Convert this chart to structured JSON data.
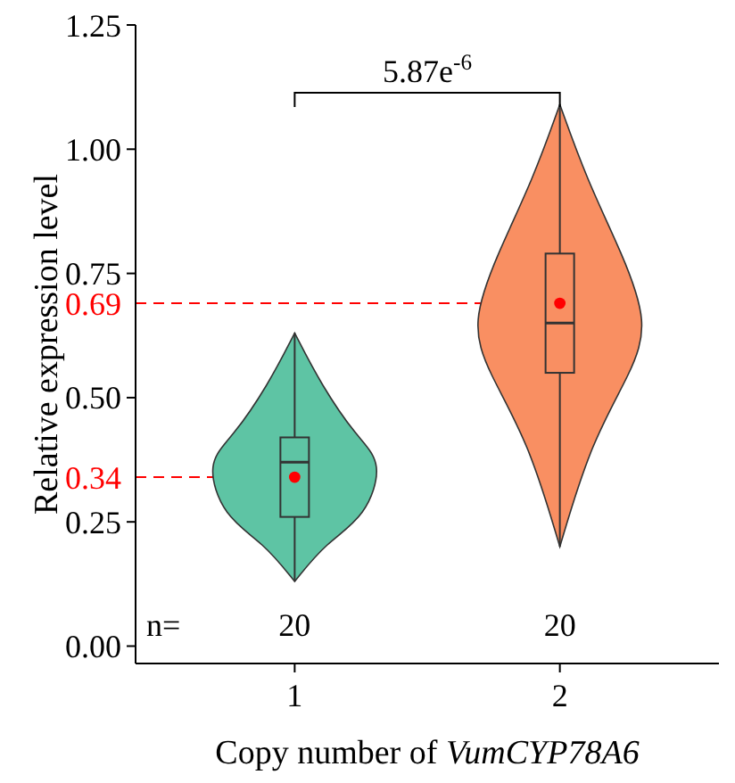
{
  "chart_data": {
    "type": "box",
    "xlabel": "Copy number of VumCYP78A6",
    "ylabel": "Relative expression level",
    "categories": [
      "1",
      "2"
    ],
    "series": [
      {
        "color": "#5ec4a4",
        "boxes": [
          {
            "low": 0.13,
            "q1": 0.26,
            "median": 0.37,
            "q3": 0.42,
            "high": 0.63,
            "mean": 0.34
          },
          null
        ]
      },
      {
        "color": "#f98f62",
        "boxes": [
          null,
          {
            "low": 0.2,
            "q1": 0.55,
            "median": 0.65,
            "q3": 0.79,
            "high": 1.09,
            "mean": 0.69
          }
        ]
      }
    ],
    "ylim": [
      -0.035,
      1.25
    ],
    "yticks": [
      {
        "value": 0,
        "label": "0.00"
      },
      {
        "value": 0.25,
        "label": "0.25"
      },
      {
        "value": 0.5,
        "label": "0.50"
      },
      {
        "value": 0.75,
        "label": "0.75"
      },
      {
        "value": 1,
        "label": "1.00"
      },
      {
        "value": 1.25,
        "label": "1.25"
      }
    ],
    "ref_lines": [
      {
        "axis": "y",
        "value": 0.34,
        "label": "0.34",
        "color": "#ff0000",
        "line_style": "dashed"
      },
      {
        "axis": "y",
        "value": 0.69,
        "label": "0.69",
        "color": "#ff0000",
        "line_style": "dashed"
      }
    ],
    "annotations": [
      "n=",
      "20",
      "20",
      "5.87e$^{-6}$"
    ],
    "grid": false
  }
}
